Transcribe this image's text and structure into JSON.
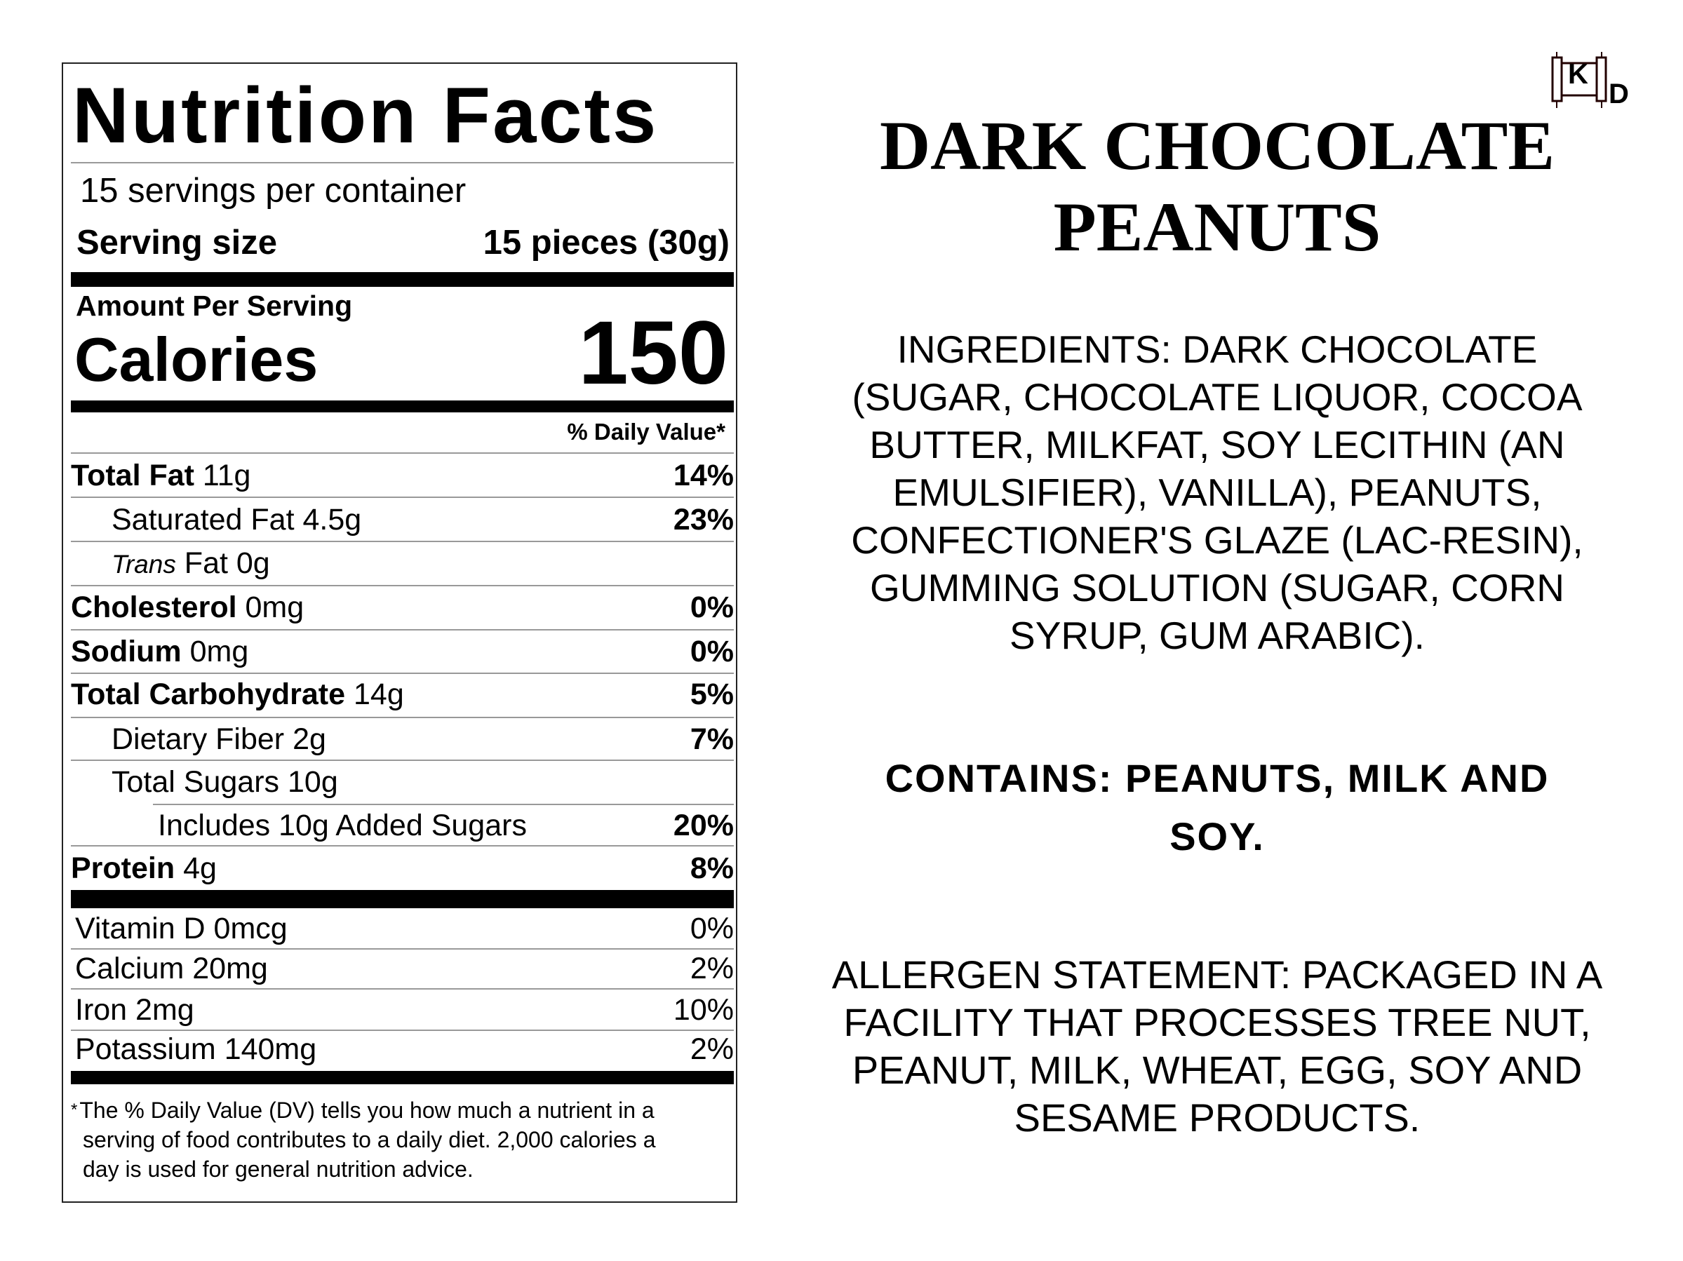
{
  "label": {
    "title": "Nutrition Facts",
    "servings": "15 servings per container",
    "serving_size_label": "Serving size",
    "serving_size_value": "15 pieces (30g)",
    "amount_per_serving": "Amount Per Serving",
    "calories_label": "Calories",
    "calories_value": "150",
    "dv_header": "% Daily Value*",
    "nutrients": [
      {
        "name": "Total Fat",
        "amount": "11g",
        "dv": "14%"
      },
      {
        "name": "Saturated Fat",
        "amount": "4.5g",
        "dv": "23%"
      },
      {
        "name_italic": "Trans",
        "name": "Fat",
        "amount": "0g",
        "dv": ""
      },
      {
        "name": "Cholesterol",
        "amount": "0mg",
        "dv": "0%"
      },
      {
        "name": "Sodium",
        "amount": "0mg",
        "dv": "0%"
      },
      {
        "name": "Total Carbohydrate",
        "amount": "14g",
        "dv": "5%"
      },
      {
        "name": "Dietary Fiber",
        "amount": "2g",
        "dv": "7%"
      },
      {
        "name": "Total Sugars",
        "amount": "10g",
        "dv": ""
      },
      {
        "name": "Includes 10g Added Sugars",
        "amount": "",
        "dv": "20%"
      },
      {
        "name": "Protein",
        "amount": "4g",
        "dv": "8%"
      }
    ],
    "vitamins": [
      {
        "name": "Vitamin D 0mcg",
        "dv": "0%"
      },
      {
        "name": "Calcium 20mg",
        "dv": "2%"
      },
      {
        "name": "Iron 2mg",
        "dv": "10%"
      },
      {
        "name": "Potassium 140mg",
        "dv": "2%"
      }
    ],
    "footnote_star": "*",
    "footnote_lines": [
      "The % Daily Value (DV) tells you how much a nutrient in a",
      "serving of food contributes to a daily diet. 2,000 calories a",
      "day is used for general nutrition advice."
    ]
  },
  "product": {
    "title_lines": [
      "DARK CHOCOLATE",
      "PEANUTS"
    ],
    "kosher_symbol": {
      "letter": "K",
      "suffix": "D",
      "icon": "kosher-dairy-scroll-icon"
    },
    "ingredients_lines": [
      "INGREDIENTS: DARK CHOCOLATE",
      "(SUGAR, CHOCOLATE LIQUOR, COCOA",
      "BUTTER, MILKFAT, SOY LECITHIN (AN",
      "EMULSIFIER), VANILLA), PEANUTS,",
      "CONFECTIONER'S GLAZE (LAC-RESIN),",
      "GUMMING SOLUTION (SUGAR, CORN",
      "SYRUP, GUM ARABIC)."
    ],
    "contains_lines": [
      "CONTAINS: PEANUTS, MILK AND",
      "SOY."
    ],
    "allergen_lines": [
      "ALLERGEN STATEMENT: PACKAGED IN A",
      "FACILITY THAT PROCESSES TREE NUT,",
      "PEANUT, MILK, WHEAT, EGG, SOY AND",
      "SESAME PRODUCTS."
    ]
  }
}
